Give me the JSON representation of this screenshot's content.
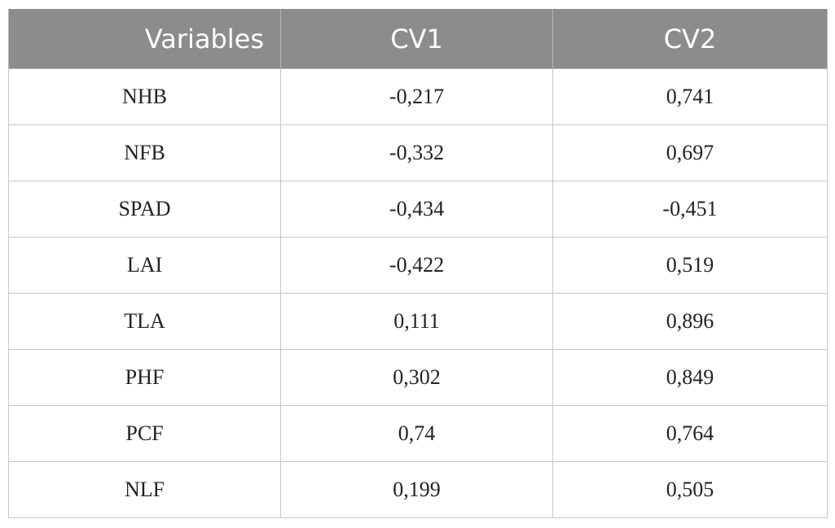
{
  "table": {
    "headers": [
      "Variables",
      "CV1",
      "CV2"
    ],
    "rows": [
      [
        "NHB",
        "-0,217",
        "0,741"
      ],
      [
        "NFB",
        "-0,332",
        "0,697"
      ],
      [
        "SPAD",
        "-0,434",
        "-0,451"
      ],
      [
        "LAI",
        "-0,422",
        "0,519"
      ],
      [
        "TLA",
        "0,111",
        "0,896"
      ],
      [
        "PHF",
        "0,302",
        "0,849"
      ],
      [
        "PCF",
        "0,74",
        "0,764"
      ],
      [
        "NLF",
        "0,199",
        "0,505"
      ]
    ]
  },
  "colors": {
    "header_background": "#8c8c8c",
    "header_text": "#ffffff",
    "grid_lines": "#c6c6c6",
    "body_text": "#222222"
  }
}
